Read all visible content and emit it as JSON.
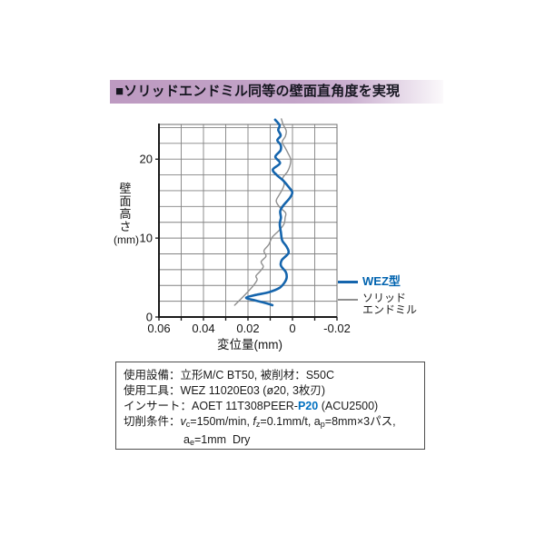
{
  "header": {
    "title": "■ソリッドエンドミル同等の壁面直角度を実現"
  },
  "colors": {
    "header_purple": "#c0a0c6",
    "wez_blue": "#1565ad",
    "legend_blue_text": "#0063af",
    "solid_gray": "#8f8f8f",
    "grid_gray": "#828282",
    "axis_black": "#1a1a1a",
    "highlight_blue": "#0070c0"
  },
  "chart_data": {
    "type": "line",
    "title": "",
    "xlabel": "変位量(mm)",
    "ylabel": "壁面高さ",
    "ylabel_unit": "(mm)",
    "xlim": [
      0.06,
      -0.02
    ],
    "ylim": [
      0,
      24.4
    ],
    "x_axis_reversed": true,
    "grid": true,
    "x_grid_step": 0.01,
    "y_grid_step": 2,
    "x_ticks": [
      0.06,
      0.04,
      0.02,
      0,
      -0.02
    ],
    "x_tick_labels": [
      "0.06",
      "0.04",
      "0.02",
      "0",
      "-0.02"
    ],
    "y_ticks": [
      0,
      10,
      20
    ],
    "y_tick_labels": [
      "0",
      "10",
      "20"
    ],
    "legend_position": "right-lower",
    "series": [
      {
        "name": "ソリッドエンドミル",
        "name_lines": [
          "ソリッド",
          "エンドミル"
        ],
        "color": "#8f8f8f",
        "width": 1.4,
        "points": [
          [
            0.026,
            1.5
          ],
          [
            0.0235,
            2.2
          ],
          [
            0.0207,
            3.0
          ],
          [
            0.0178,
            3.9
          ],
          [
            0.0159,
            4.7
          ],
          [
            0.0164,
            5.2
          ],
          [
            0.0145,
            5.8
          ],
          [
            0.0131,
            6.4
          ],
          [
            0.0141,
            7.0
          ],
          [
            0.0119,
            7.7
          ],
          [
            0.0128,
            8.4
          ],
          [
            0.0106,
            9.2
          ],
          [
            0.0091,
            10.1
          ],
          [
            0.0059,
            11.0
          ],
          [
            0.0038,
            11.8
          ],
          [
            0.0033,
            12.6
          ],
          [
            0.0031,
            13.2
          ],
          [
            0.0057,
            13.9
          ],
          [
            0.0073,
            14.7
          ],
          [
            0.0059,
            15.5
          ],
          [
            0.0045,
            16.2
          ],
          [
            0.0037,
            16.9
          ],
          [
            0.0044,
            17.6
          ],
          [
            0.0023,
            18.4
          ],
          [
            0.0011,
            19.2
          ],
          [
            0.0008,
            20.0
          ],
          [
            0.0021,
            20.8
          ],
          [
            0.0034,
            21.5
          ],
          [
            0.0046,
            22.2
          ],
          [
            0.0032,
            22.9
          ],
          [
            0.0028,
            23.6
          ],
          [
            0.0042,
            24.4
          ],
          [
            0.005,
            25.1
          ]
        ]
      },
      {
        "name": "WEZ型",
        "color": "#1565ad",
        "width": 2.6,
        "points": [
          [
            0.009,
            1.5
          ],
          [
            0.0125,
            1.8
          ],
          [
            0.0175,
            2.15
          ],
          [
            0.0208,
            2.45
          ],
          [
            0.0165,
            2.8
          ],
          [
            0.0105,
            3.15
          ],
          [
            0.0058,
            3.7
          ],
          [
            0.0035,
            4.4
          ],
          [
            0.0026,
            5.0
          ],
          [
            0.003,
            5.7
          ],
          [
            0.0052,
            6.5
          ],
          [
            0.0048,
            7.2
          ],
          [
            0.0018,
            8.1
          ],
          [
            0.0026,
            8.9
          ],
          [
            0.0046,
            9.7
          ],
          [
            0.0052,
            10.7
          ],
          [
            0.0057,
            11.8
          ],
          [
            0.0052,
            12.6
          ],
          [
            0.0055,
            13.4
          ],
          [
            0.0042,
            14.1
          ],
          [
            0.0012,
            15.1
          ],
          [
            0.0001,
            15.8
          ],
          [
            0.0018,
            16.5
          ],
          [
            0.0042,
            17.3
          ],
          [
            0.0071,
            18.0
          ],
          [
            0.0088,
            18.7
          ],
          [
            0.0056,
            19.5
          ],
          [
            0.0077,
            20.3
          ],
          [
            0.0054,
            21.1
          ],
          [
            0.0053,
            21.8
          ],
          [
            0.0068,
            22.4
          ],
          [
            0.0053,
            23.0
          ],
          [
            0.0064,
            23.7
          ],
          [
            0.0058,
            24.3
          ],
          [
            0.0078,
            25.0
          ]
        ]
      }
    ]
  },
  "legend": {
    "wez_label": "WEZ型",
    "solid_line1": "ソリッド",
    "solid_line2": "エンドミル"
  },
  "specs": {
    "lines": [
      {
        "label": "使用設備：",
        "segments": [
          {
            "t": "立形M/C BT50, 被削材：S50C"
          }
        ]
      },
      {
        "label": "使用工具：",
        "segments": [
          {
            "t": "WEZ 11020E03 (ø20, 3枚刃)"
          }
        ]
      },
      {
        "label": "インサート：",
        "segments": [
          {
            "t": "AOET 11T308PEER-"
          },
          {
            "t": "P20",
            "s": "blue"
          },
          {
            "t": " (ACU2500)"
          }
        ]
      },
      {
        "label": "切削条件：",
        "segments": [
          {
            "t": "v",
            "s": "i"
          },
          {
            "t": "c",
            "s": "sub"
          },
          {
            "t": "=150m/min, "
          },
          {
            "t": "f",
            "s": "i"
          },
          {
            "t": "z",
            "s": "sub"
          },
          {
            "t": "=0.1mm/t, a"
          },
          {
            "t": "p",
            "s": "sub"
          },
          {
            "t": "=8mm×3パス,"
          }
        ]
      },
      {
        "label": "",
        "indent": true,
        "segments": [
          {
            "t": "a"
          },
          {
            "t": "e",
            "s": "sub"
          },
          {
            "t": "=1mm  Dry"
          }
        ]
      }
    ]
  }
}
